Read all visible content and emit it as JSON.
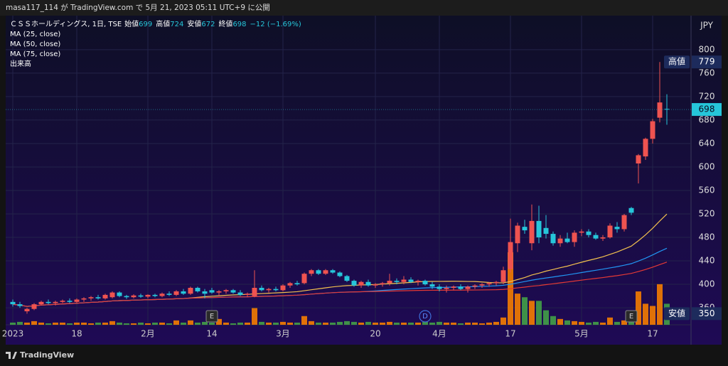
{
  "header": "masa117_114 が TradingView.com で 5月 21, 2023 05:11 UTC+9 に公開",
  "footer": "TradingView",
  "chart_data": {
    "type": "candlestick",
    "title": "ＣＳＳホールディングス, 1日, TSE",
    "open_label": "始値",
    "high_label": "高値",
    "low_label": "安値",
    "close_label": "終値",
    "change_label": "−12 (−1.69%)",
    "currency": "JPY",
    "volume_name": "出来高",
    "events": [
      "E",
      "D",
      "E"
    ],
    "up_color": "#ef5350",
    "down_color": "#26c6da",
    "volume_up_color": "#f57c00",
    "volume_down_color": "#43a047",
    "moving_averages": [
      {
        "name": "MA (25, close)",
        "period": 25,
        "color": "#f2c14e"
      },
      {
        "name": "MA (50, close)",
        "period": 50,
        "color": "#2196f3"
      },
      {
        "name": "MA (75, close)",
        "period": 75,
        "color": "#e53935"
      }
    ],
    "open": [
      370,
      366,
      354,
      358,
      366,
      370,
      368,
      370,
      372,
      370,
      374,
      376,
      378,
      376,
      378,
      386,
      380,
      378,
      381,
      379,
      382,
      380,
      384,
      382,
      388,
      384,
      394,
      388,
      390,
      386,
      388,
      390,
      386,
      382,
      380,
      394,
      390,
      392,
      390,
      398,
      402,
      402,
      418,
      424,
      418,
      424,
      420,
      414,
      406,
      398,
      404,
      398,
      400,
      402,
      406,
      404,
      408,
      404,
      406,
      400,
      396,
      392,
      394,
      396,
      392,
      396,
      398,
      400,
      402,
      404,
      426,
      470,
      498,
      470,
      508,
      496,
      486,
      470,
      478,
      472,
      488,
      490,
      484,
      478,
      480,
      498,
      494,
      530,
      606,
      618,
      648,
      684,
      699
    ],
    "high": [
      374,
      370,
      360,
      368,
      372,
      374,
      372,
      374,
      376,
      376,
      378,
      380,
      382,
      384,
      388,
      388,
      382,
      383,
      384,
      383,
      384,
      386,
      388,
      390,
      392,
      396,
      396,
      392,
      394,
      390,
      392,
      392,
      390,
      386,
      424,
      398,
      394,
      396,
      400,
      404,
      406,
      420,
      426,
      426,
      426,
      426,
      422,
      416,
      408,
      406,
      408,
      402,
      404,
      418,
      410,
      414,
      412,
      408,
      408,
      404,
      400,
      398,
      398,
      400,
      398,
      400,
      402,
      404,
      406,
      430,
      512,
      505,
      510,
      536,
      534,
      518,
      490,
      484,
      488,
      492,
      494,
      494,
      488,
      484,
      504,
      506,
      520,
      532,
      622,
      650,
      682,
      779,
      724
    ],
    "low": [
      362,
      360,
      350,
      356,
      364,
      366,
      364,
      368,
      368,
      368,
      370,
      372,
      374,
      374,
      376,
      378,
      375,
      376,
      377,
      376,
      378,
      378,
      380,
      380,
      382,
      382,
      386,
      376,
      384,
      380,
      384,
      384,
      380,
      378,
      378,
      388,
      386,
      388,
      388,
      394,
      398,
      400,
      414,
      416,
      416,
      418,
      412,
      404,
      396,
      394,
      396,
      394,
      396,
      398,
      400,
      400,
      402,
      398,
      398,
      392,
      388,
      386,
      390,
      390,
      386,
      392,
      394,
      396,
      398,
      400,
      420,
      455,
      486,
      458,
      470,
      478,
      466,
      464,
      470,
      464,
      482,
      480,
      476,
      474,
      478,
      488,
      490,
      518,
      572,
      612,
      640,
      676,
      672
    ],
    "close": [
      366,
      363,
      358,
      366,
      370,
      368,
      370,
      372,
      370,
      374,
      376,
      378,
      376,
      382,
      386,
      380,
      378,
      381,
      379,
      382,
      380,
      384,
      382,
      388,
      384,
      394,
      388,
      384,
      386,
      388,
      390,
      386,
      382,
      384,
      394,
      390,
      392,
      390,
      398,
      402,
      400,
      418,
      424,
      418,
      424,
      420,
      414,
      406,
      398,
      404,
      398,
      400,
      402,
      406,
      404,
      408,
      404,
      406,
      400,
      396,
      392,
      394,
      396,
      392,
      396,
      398,
      400,
      402,
      404,
      424,
      472,
      500,
      492,
      508,
      480,
      486,
      470,
      478,
      472,
      488,
      490,
      484,
      478,
      480,
      500,
      494,
      518,
      522,
      620,
      648,
      678,
      710,
      698
    ],
    "volume": [
      3,
      4,
      3,
      5,
      3,
      2,
      3,
      3,
      2,
      3,
      3,
      2,
      3,
      3,
      5,
      3,
      2,
      2,
      3,
      2,
      3,
      3,
      2,
      6,
      3,
      6,
      3,
      4,
      3,
      8,
      3,
      2,
      3,
      3,
      23,
      4,
      3,
      3,
      4,
      3,
      3,
      12,
      5,
      3,
      3,
      3,
      4,
      5,
      4,
      3,
      4,
      3,
      3,
      4,
      3,
      3,
      3,
      3,
      4,
      3,
      4,
      3,
      3,
      2,
      3,
      3,
      2,
      3,
      4,
      10,
      100,
      43,
      38,
      33,
      33,
      20,
      12,
      8,
      6,
      5,
      4,
      3,
      4,
      3,
      10,
      4,
      6,
      5,
      46,
      29,
      26,
      56,
      29
    ],
    "ylim": [
      331,
      858
    ],
    "yticks": [
      360,
      400,
      440,
      480,
      520,
      560,
      600,
      640,
      680,
      720,
      760,
      800
    ],
    "xticks": [
      {
        "value": 0,
        "label": "2023"
      },
      {
        "value": 9,
        "label": "18"
      },
      {
        "value": 19,
        "label": "2月"
      },
      {
        "value": 28,
        "label": "14"
      },
      {
        "value": 38,
        "label": "3月"
      },
      {
        "value": 51,
        "label": "20"
      },
      {
        "value": 60,
        "label": "4月"
      },
      {
        "value": 70,
        "label": "17"
      },
      {
        "value": 80,
        "label": "5月"
      },
      {
        "value": 90,
        "label": "17"
      }
    ],
    "grid": true
  }
}
